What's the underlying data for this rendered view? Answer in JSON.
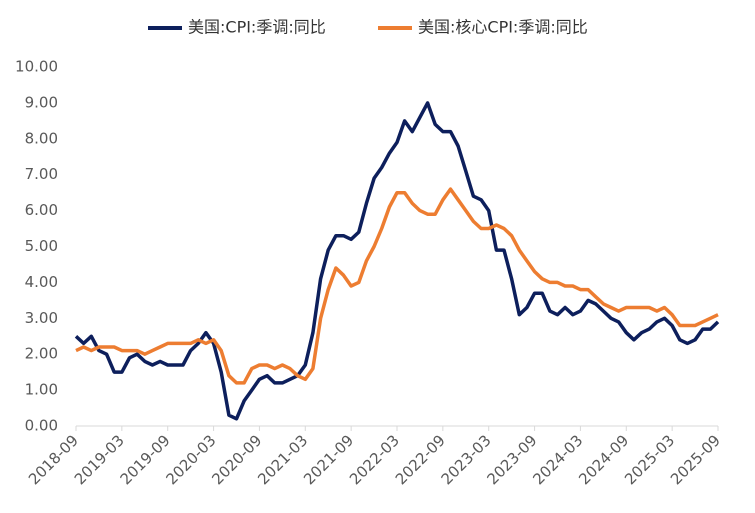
{
  "chart_data": {
    "type": "line",
    "categories": [
      "2018-09",
      null,
      null,
      null,
      null,
      null,
      "2019-03",
      null,
      null,
      null,
      null,
      null,
      "2019-09",
      null,
      null,
      null,
      null,
      null,
      "2020-03",
      null,
      null,
      null,
      null,
      null,
      "2020-09",
      null,
      null,
      null,
      null,
      null,
      "2021-03",
      null,
      null,
      null,
      null,
      null,
      "2021-09",
      null,
      null,
      null,
      null,
      null,
      "2022-03",
      null,
      null,
      null,
      null,
      null,
      "2022-09",
      null,
      null,
      null,
      null,
      null,
      "2023-03",
      null,
      null,
      null,
      null,
      null,
      "2023-09",
      null,
      null,
      null,
      null,
      null,
      "2024-03",
      null,
      null,
      null,
      null,
      null,
      "2024-09",
      null,
      null,
      null,
      null,
      null,
      "2025-03",
      null,
      null,
      null,
      null,
      null,
      "2025-09"
    ],
    "series": [
      {
        "name": "美国:CPI:季调:同比",
        "color": "#0d1f5c",
        "values": [
          2.5,
          2.3,
          2.5,
          2.1,
          2.0,
          1.5,
          1.5,
          1.9,
          2.0,
          1.8,
          1.7,
          1.8,
          1.7,
          1.7,
          1.7,
          2.1,
          2.3,
          2.6,
          2.3,
          1.5,
          0.3,
          0.2,
          0.7,
          1.0,
          1.3,
          1.4,
          1.2,
          1.2,
          1.3,
          1.4,
          1.7,
          2.6,
          4.1,
          4.9,
          5.3,
          5.3,
          5.2,
          5.4,
          6.2,
          6.9,
          7.2,
          7.6,
          7.9,
          8.5,
          8.2,
          8.6,
          9.0,
          8.4,
          8.2,
          8.2,
          7.8,
          7.1,
          6.4,
          6.3,
          6.0,
          4.9,
          4.9,
          4.1,
          3.1,
          3.3,
          3.7,
          3.7,
          3.2,
          3.1,
          3.3,
          3.1,
          3.2,
          3.5,
          3.4,
          3.2,
          3.0,
          2.9,
          2.6,
          2.4,
          2.6,
          2.7,
          2.9,
          3.0,
          2.8,
          2.4,
          2.3,
          2.4,
          2.7,
          2.7,
          2.9
        ]
      },
      {
        "name": "美国:核心CPI:季调:同比",
        "color": "#ed7d31",
        "values": [
          2.1,
          2.2,
          2.1,
          2.2,
          2.2,
          2.2,
          2.1,
          2.1,
          2.1,
          2.0,
          2.1,
          2.2,
          2.3,
          2.3,
          2.3,
          2.3,
          2.4,
          2.3,
          2.4,
          2.1,
          1.4,
          1.2,
          1.2,
          1.6,
          1.7,
          1.7,
          1.6,
          1.7,
          1.6,
          1.4,
          1.3,
          1.6,
          3.0,
          3.8,
          4.4,
          4.2,
          3.9,
          4.0,
          4.6,
          5.0,
          5.5,
          6.1,
          6.5,
          6.5,
          6.2,
          6.0,
          5.9,
          5.9,
          6.3,
          6.6,
          6.3,
          6.0,
          5.7,
          5.5,
          5.5,
          5.6,
          5.5,
          5.3,
          4.9,
          4.6,
          4.3,
          4.1,
          4.0,
          4.0,
          3.9,
          3.9,
          3.8,
          3.8,
          3.6,
          3.4,
          3.3,
          3.2,
          3.3,
          3.3,
          3.3,
          3.3,
          3.2,
          3.3,
          3.1,
          2.8,
          2.8,
          2.8,
          2.9,
          3.0,
          3.1
        ]
      }
    ],
    "ylim": [
      0,
      10
    ],
    "yticks": [
      {
        "value": 0,
        "label": "0.00"
      },
      {
        "value": 1,
        "label": "1.00"
      },
      {
        "value": 2,
        "label": "2.00"
      },
      {
        "value": 3,
        "label": "3.00"
      },
      {
        "value": 4,
        "label": "4.00"
      },
      {
        "value": 5,
        "label": "5.00"
      },
      {
        "value": 6,
        "label": "6.00"
      },
      {
        "value": 7,
        "label": "7.00"
      },
      {
        "value": 8,
        "label": "8.00"
      },
      {
        "value": 9,
        "label": "9.00"
      },
      {
        "value": 10,
        "label": "10.00"
      }
    ],
    "legend": "top"
  }
}
